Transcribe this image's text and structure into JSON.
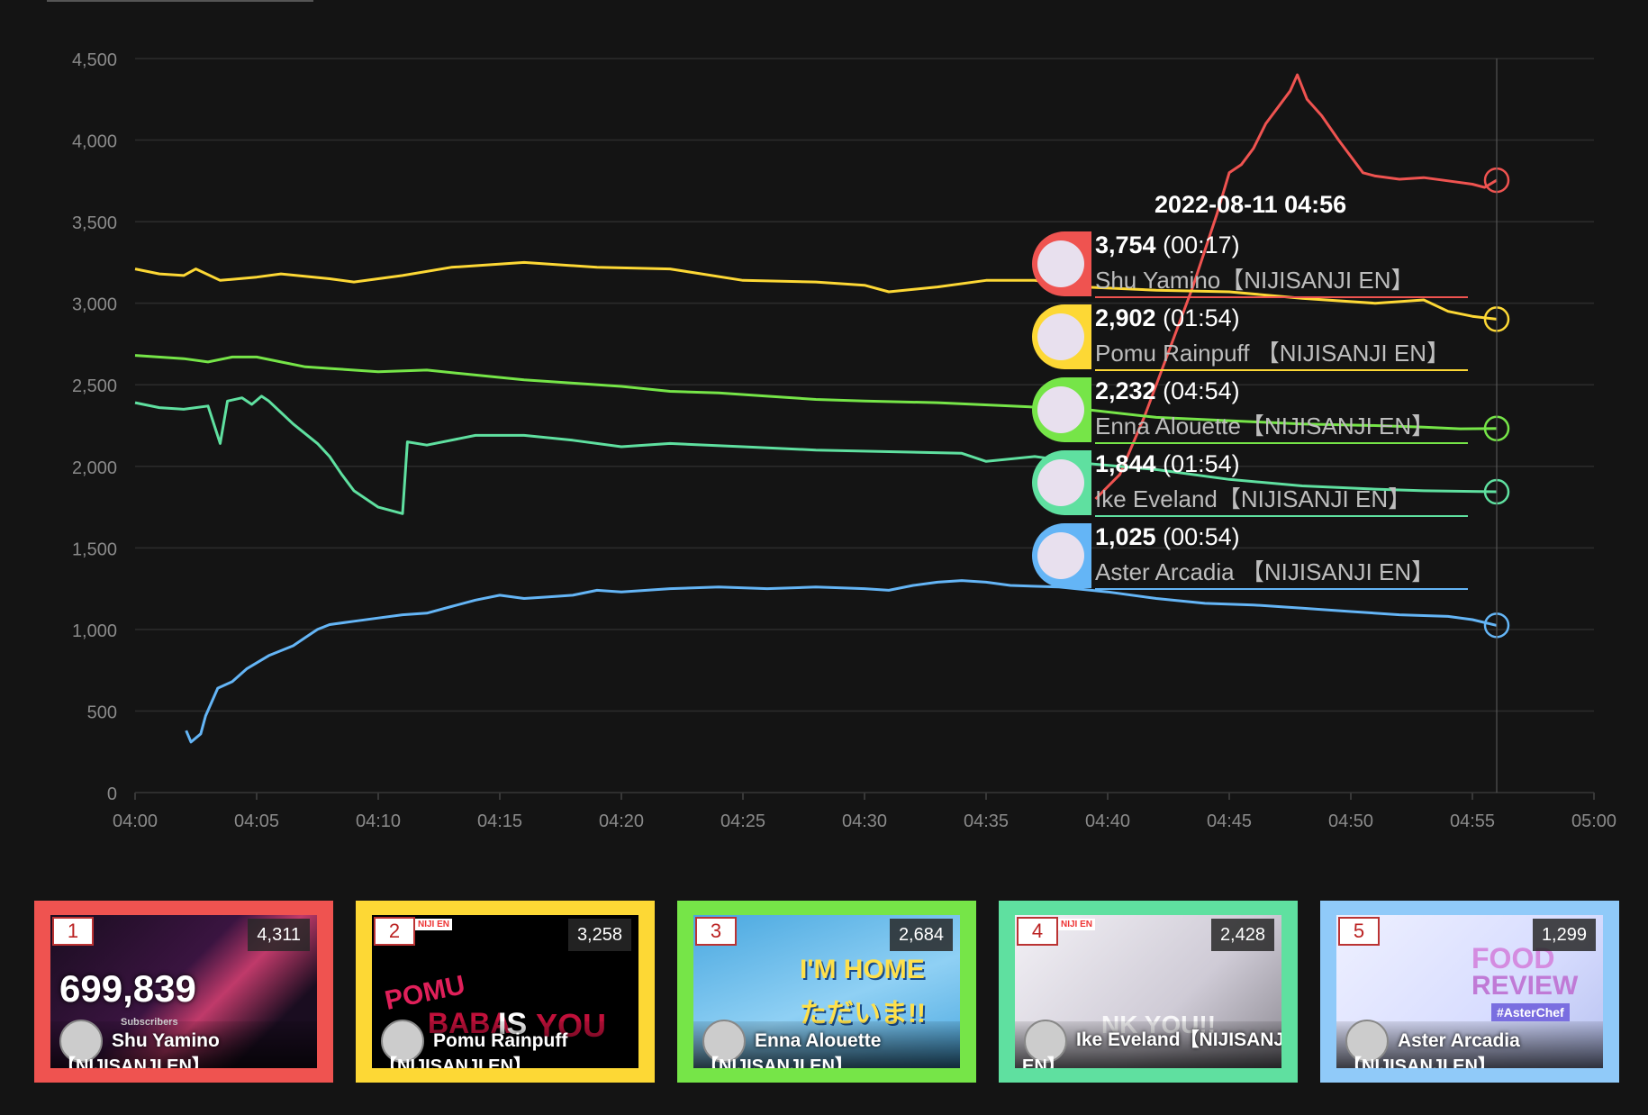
{
  "chart_data": {
    "type": "line",
    "x_ticks": [
      "04:00",
      "04:05",
      "04:10",
      "04:15",
      "04:20",
      "04:25",
      "04:30",
      "04:35",
      "04:40",
      "04:45",
      "04:50",
      "04:55",
      "05:00"
    ],
    "y_ticks": [
      "0",
      "500",
      "1,000",
      "1,500",
      "2,000",
      "2,500",
      "3,000",
      "3,500",
      "4,000",
      "4,500"
    ],
    "xlim_minutes": [
      0,
      60
    ],
    "ylim": [
      0,
      4500
    ],
    "grid": true,
    "cursor_minute": 56,
    "series": [
      {
        "name": "Shu Yamino【NIJISANJI EN】",
        "color": "#ef5350",
        "points": [
          [
            39.5,
            1800
          ],
          [
            40.5,
            1950
          ],
          [
            41.5,
            2300
          ],
          [
            42.5,
            2700
          ],
          [
            43.5,
            3100
          ],
          [
            44.5,
            3550
          ],
          [
            45,
            3800
          ],
          [
            45.5,
            3850
          ],
          [
            46,
            3950
          ],
          [
            46.5,
            4100
          ],
          [
            47,
            4200
          ],
          [
            47.5,
            4300
          ],
          [
            47.8,
            4400
          ],
          [
            48.2,
            4250
          ],
          [
            48.8,
            4150
          ],
          [
            49.5,
            4000
          ],
          [
            50,
            3900
          ],
          [
            50.5,
            3800
          ],
          [
            51,
            3780
          ],
          [
            52,
            3760
          ],
          [
            53,
            3770
          ],
          [
            54,
            3750
          ],
          [
            55,
            3730
          ],
          [
            55.5,
            3710
          ],
          [
            56,
            3754
          ]
        ]
      },
      {
        "name": "Pomu Rainpuff 【NIJISANJI EN】",
        "color": "#fdd835",
        "points": [
          [
            0,
            3210
          ],
          [
            1,
            3180
          ],
          [
            2,
            3170
          ],
          [
            2.5,
            3210
          ],
          [
            3.5,
            3140
          ],
          [
            5,
            3160
          ],
          [
            6,
            3180
          ],
          [
            8,
            3150
          ],
          [
            9,
            3130
          ],
          [
            11,
            3170
          ],
          [
            13,
            3220
          ],
          [
            16,
            3250
          ],
          [
            19,
            3220
          ],
          [
            22,
            3210
          ],
          [
            25,
            3140
          ],
          [
            28,
            3130
          ],
          [
            30,
            3110
          ],
          [
            31,
            3070
          ],
          [
            33,
            3100
          ],
          [
            35,
            3140
          ],
          [
            37,
            3140
          ],
          [
            39,
            3100
          ],
          [
            42,
            3080
          ],
          [
            45,
            3070
          ],
          [
            48,
            3030
          ],
          [
            51,
            3000
          ],
          [
            53,
            3020
          ],
          [
            54,
            2950
          ],
          [
            55,
            2920
          ],
          [
            56,
            2902
          ]
        ]
      },
      {
        "name": "Enna Alouette【NIJISANJI EN】",
        "color": "#76e548",
        "points": [
          [
            0,
            2680
          ],
          [
            2,
            2660
          ],
          [
            3,
            2640
          ],
          [
            4,
            2670
          ],
          [
            5,
            2670
          ],
          [
            6,
            2640
          ],
          [
            7,
            2610
          ],
          [
            8,
            2600
          ],
          [
            10,
            2580
          ],
          [
            12,
            2590
          ],
          [
            14,
            2560
          ],
          [
            16,
            2530
          ],
          [
            18,
            2510
          ],
          [
            20,
            2490
          ],
          [
            22,
            2460
          ],
          [
            24,
            2450
          ],
          [
            26,
            2430
          ],
          [
            28,
            2410
          ],
          [
            30,
            2400
          ],
          [
            33,
            2390
          ],
          [
            36,
            2370
          ],
          [
            39,
            2350
          ],
          [
            42,
            2300
          ],
          [
            45,
            2280
          ],
          [
            48,
            2260
          ],
          [
            51,
            2250
          ],
          [
            53,
            2240
          ],
          [
            54.5,
            2230
          ],
          [
            56,
            2232
          ]
        ]
      },
      {
        "name": "Ike Eveland【NIJISANJI EN】",
        "color": "#5fe0a0",
        "points": [
          [
            0,
            2390
          ],
          [
            1,
            2360
          ],
          [
            2,
            2350
          ],
          [
            3,
            2370
          ],
          [
            3.5,
            2140
          ],
          [
            3.8,
            2400
          ],
          [
            4.4,
            2420
          ],
          [
            4.8,
            2380
          ],
          [
            5.2,
            2430
          ],
          [
            5.5,
            2400
          ],
          [
            6,
            2330
          ],
          [
            6.5,
            2260
          ],
          [
            7.5,
            2140
          ],
          [
            8,
            2060
          ],
          [
            8.5,
            1950
          ],
          [
            9,
            1850
          ],
          [
            10,
            1750
          ],
          [
            11,
            1710
          ],
          [
            11.2,
            2150
          ],
          [
            12,
            2130
          ],
          [
            14,
            2190
          ],
          [
            16,
            2190
          ],
          [
            18,
            2160
          ],
          [
            20,
            2120
          ],
          [
            22,
            2140
          ],
          [
            25,
            2120
          ],
          [
            28,
            2100
          ],
          [
            31,
            2090
          ],
          [
            34,
            2080
          ],
          [
            35,
            2030
          ],
          [
            37,
            2060
          ],
          [
            39,
            2020
          ],
          [
            42,
            1980
          ],
          [
            45,
            1920
          ],
          [
            48,
            1880
          ],
          [
            51,
            1860
          ],
          [
            53,
            1850
          ],
          [
            56,
            1844
          ]
        ]
      },
      {
        "name": "Aster Arcadia 【NIJISANJI EN】",
        "color": "#64b5f6",
        "points": [
          [
            2.1,
            380
          ],
          [
            2.3,
            310
          ],
          [
            2.7,
            360
          ],
          [
            2.9,
            470
          ],
          [
            3.4,
            640
          ],
          [
            4,
            680
          ],
          [
            4.6,
            760
          ],
          [
            5.5,
            840
          ],
          [
            6.5,
            900
          ],
          [
            7,
            950
          ],
          [
            7.5,
            1000
          ],
          [
            8,
            1030
          ],
          [
            9,
            1050
          ],
          [
            10,
            1070
          ],
          [
            11,
            1090
          ],
          [
            12,
            1100
          ],
          [
            13,
            1140
          ],
          [
            14,
            1180
          ],
          [
            15,
            1210
          ],
          [
            16,
            1190
          ],
          [
            17,
            1200
          ],
          [
            18,
            1210
          ],
          [
            19,
            1240
          ],
          [
            20,
            1230
          ],
          [
            22,
            1250
          ],
          [
            24,
            1260
          ],
          [
            26,
            1250
          ],
          [
            28,
            1260
          ],
          [
            30,
            1250
          ],
          [
            31,
            1240
          ],
          [
            32,
            1270
          ],
          [
            33,
            1290
          ],
          [
            34,
            1300
          ],
          [
            35,
            1290
          ],
          [
            36,
            1270
          ],
          [
            38,
            1260
          ],
          [
            40,
            1230
          ],
          [
            42,
            1190
          ],
          [
            44,
            1160
          ],
          [
            46,
            1150
          ],
          [
            48,
            1130
          ],
          [
            50,
            1110
          ],
          [
            52,
            1090
          ],
          [
            54,
            1080
          ],
          [
            55,
            1060
          ],
          [
            56,
            1025
          ]
        ]
      }
    ]
  },
  "tooltip": {
    "time": "2022-08-11 04:56",
    "rows": [
      {
        "value": "3,754",
        "detail": "(00:17)",
        "name": "Shu Yamino【NIJISANJI EN】",
        "color": "#ef5350",
        "icon": "avatar-shu"
      },
      {
        "value": "2,902",
        "detail": "(01:54)",
        "name": "Pomu Rainpuff 【NIJISANJI EN】",
        "color": "#fdd835",
        "icon": "avatar-pomu"
      },
      {
        "value": "2,232",
        "detail": "(04:54)",
        "name": "Enna Alouette【NIJISANJI EN】",
        "color": "#76e548",
        "icon": "avatar-enna"
      },
      {
        "value": "1,844",
        "detail": "(01:54)",
        "name": "Ike Eveland【NIJISANJI EN】",
        "color": "#5fe0a0",
        "icon": "avatar-ike"
      },
      {
        "value": "1,025",
        "detail": "(00:54)",
        "name": "Aster Arcadia 【NIJISANJI EN】",
        "color": "#64b5f6",
        "icon": "avatar-aster"
      }
    ]
  },
  "cards": [
    {
      "rank": "1",
      "views": "4,311",
      "name": "Shu Yamino",
      "name_line2": "【NIJISANJI EN】",
      "border": "#ef5350",
      "subscribers": "699,839",
      "subscribers_label": "Subscribers"
    },
    {
      "rank": "2",
      "views": "3,258",
      "name": "Pomu Rainpuff",
      "name_line2": "【NIJISANJI EN】",
      "border": "#fdd835",
      "thumb_text": [
        "POMU",
        "BABA",
        "IS",
        "YOU"
      ],
      "logo_text": "NIJI EN"
    },
    {
      "rank": "3",
      "views": "2,684",
      "name": "Enna Alouette",
      "name_line2": "【NIJISANJI EN】",
      "border": "#76e548",
      "thumb_text": [
        "I'M HOME",
        "ただいま!!"
      ]
    },
    {
      "rank": "4",
      "views": "2,428",
      "name": "Ike Eveland【NIJISANJI",
      "name_line2": "EN】",
      "border": "#5fe0a0",
      "logo_text": "NIJI EN",
      "thumb_text": [
        "NK YOU!!"
      ]
    },
    {
      "rank": "5",
      "views": "1,299",
      "name": "Aster Arcadia",
      "name_line2": "【NIJISANJI EN】",
      "border": "#90caf9",
      "thumb_text": [
        "FOOD",
        "REVIEW",
        "#AsterChef"
      ]
    }
  ]
}
